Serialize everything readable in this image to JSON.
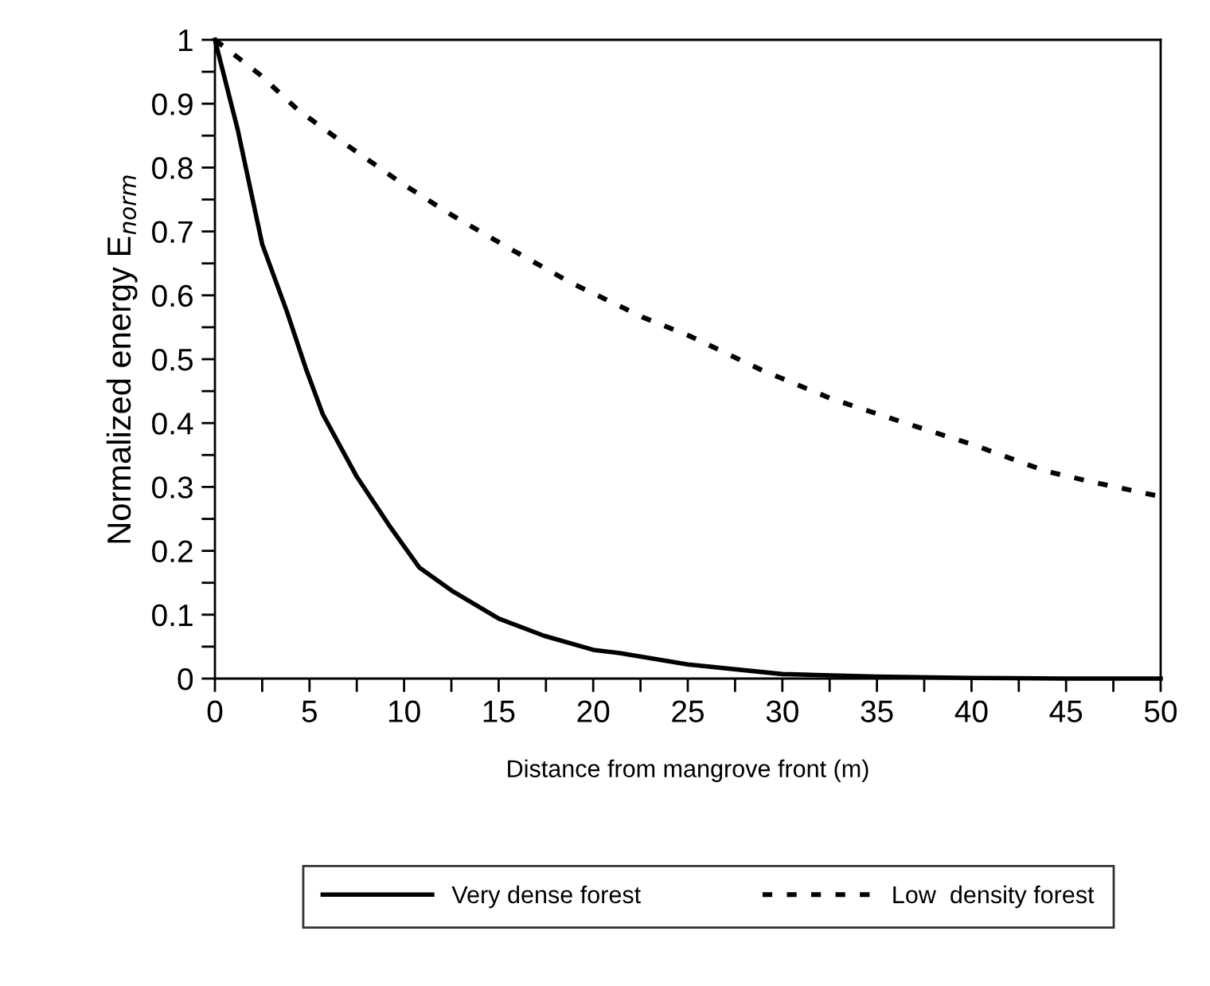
{
  "chart_data": {
    "type": "line",
    "xlabel": "Distance from mangrove front (m)",
    "ylabel": "Normalized energy E$_{norm}$",
    "series": [
      {
        "name": "Very dense forest",
        "color": "#000000",
        "line_style": "solid",
        "x": [
          0,
          1.2,
          2.5,
          3.8,
          4.8,
          5.7,
          7.5,
          9.3,
          10.8,
          12.5,
          15,
          17.4,
          20,
          21.4,
          25,
          30,
          35,
          40,
          45,
          50
        ],
        "values": [
          1,
          0.86,
          0.68,
          0.575,
          0.486,
          0.414,
          0.316,
          0.236,
          0.174,
          0.138,
          0.094,
          0.067,
          0.045,
          0.04,
          0.022,
          0.007,
          0.003,
          0.001,
          0,
          0
        ]
      },
      {
        "name": "Low  density forest",
        "color": "#000000",
        "line_style": "dotted",
        "x": [
          0,
          2.4,
          4.4,
          6.4,
          9.9,
          12.5,
          15.6,
          18.8,
          22.6,
          25.2,
          28.9,
          32.6,
          36.4,
          40.1,
          43.9,
          46.5,
          50
        ],
        "values": [
          1,
          0.945,
          0.89,
          0.847,
          0.775,
          0.726,
          0.673,
          0.62,
          0.566,
          0.535,
          0.483,
          0.438,
          0.401,
          0.366,
          0.325,
          0.307,
          0.285
        ]
      }
    ],
    "xlim": [
      0,
      50
    ],
    "ylim": [
      0,
      1
    ],
    "xticks": [
      0,
      {
        "value": 2.5,
        "label": null
      },
      5,
      {
        "value": 7.5,
        "label": null
      },
      10,
      {
        "value": 12.5,
        "label": null
      },
      15,
      {
        "value": 17.5,
        "label": null
      },
      20,
      {
        "value": 22.5,
        "label": null
      },
      25,
      {
        "value": 27.5,
        "label": null
      },
      30,
      {
        "value": 32.5,
        "label": null
      },
      35,
      {
        "value": 37.5,
        "label": null
      },
      40,
      {
        "value": 42.5,
        "label": null
      },
      45,
      {
        "value": 47.5,
        "label": null
      },
      50
    ],
    "yticks": [
      0,
      {
        "value": 0.05,
        "label": null
      },
      0.1,
      {
        "value": 0.15,
        "label": null
      },
      0.2,
      {
        "value": 0.25,
        "label": null
      },
      0.3,
      {
        "value": 0.35,
        "label": null
      },
      0.4,
      {
        "value": 0.45,
        "label": null
      },
      0.5,
      {
        "value": 0.55,
        "label": null
      },
      0.6,
      {
        "value": 0.65,
        "label": null
      },
      0.7,
      {
        "value": 0.75,
        "label": null
      },
      0.8,
      {
        "value": 0.85,
        "label": null
      },
      0.9,
      {
        "value": 0.95,
        "label": null
      },
      1
    ],
    "grid": false,
    "legend": "bottom",
    "marker": "none"
  }
}
